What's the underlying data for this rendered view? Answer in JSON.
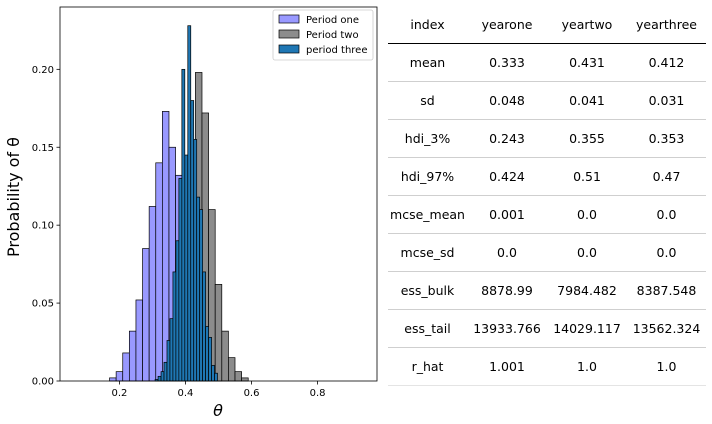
{
  "chart_data": {
    "type": "bar",
    "subtype": "histogram-overlay",
    "xlabel": "θ",
    "ylabel": "Probability of θ",
    "xlim": [
      0.02,
      0.98
    ],
    "ylim": [
      0,
      0.24
    ],
    "x_ticks": [
      0.2,
      0.4,
      0.6,
      0.8
    ],
    "y_ticks": [
      0.0,
      0.05,
      0.1,
      0.15,
      0.2
    ],
    "grid": false,
    "legend": "top-right",
    "series": [
      {
        "name": "Period one",
        "color": "#9999ff",
        "bins": [
          [
            0.17,
            0.19,
            0.002
          ],
          [
            0.19,
            0.21,
            0.006
          ],
          [
            0.21,
            0.23,
            0.018
          ],
          [
            0.23,
            0.25,
            0.032
          ],
          [
            0.25,
            0.27,
            0.052
          ],
          [
            0.27,
            0.29,
            0.085
          ],
          [
            0.29,
            0.31,
            0.112
          ],
          [
            0.31,
            0.33,
            0.14
          ],
          [
            0.33,
            0.35,
            0.173
          ],
          [
            0.35,
            0.37,
            0.15
          ],
          [
            0.37,
            0.39,
            0.132
          ],
          [
            0.39,
            0.41,
            0.095
          ],
          [
            0.41,
            0.43,
            0.055
          ],
          [
            0.43,
            0.45,
            0.032
          ],
          [
            0.45,
            0.47,
            0.013
          ],
          [
            0.47,
            0.49,
            0.005
          ],
          [
            0.49,
            0.51,
            0.002
          ]
        ]
      },
      {
        "name": "Period two",
        "color": "#8c8c8c",
        "bins": [
          [
            0.33,
            0.35,
            0.003
          ],
          [
            0.35,
            0.37,
            0.01
          ],
          [
            0.37,
            0.39,
            0.03
          ],
          [
            0.39,
            0.41,
            0.078
          ],
          [
            0.41,
            0.43,
            0.148
          ],
          [
            0.43,
            0.45,
            0.198
          ],
          [
            0.45,
            0.47,
            0.172
          ],
          [
            0.47,
            0.49,
            0.11
          ],
          [
            0.49,
            0.51,
            0.062
          ],
          [
            0.51,
            0.53,
            0.032
          ],
          [
            0.53,
            0.55,
            0.015
          ],
          [
            0.55,
            0.57,
            0.006
          ],
          [
            0.57,
            0.59,
            0.002
          ]
        ]
      },
      {
        "name": "period three",
        "color": "#1f77b4",
        "bins": [
          [
            0.308,
            0.317,
            0.001
          ],
          [
            0.317,
            0.326,
            0.003
          ],
          [
            0.326,
            0.335,
            0.006
          ],
          [
            0.335,
            0.344,
            0.012
          ],
          [
            0.344,
            0.353,
            0.026
          ],
          [
            0.353,
            0.362,
            0.04
          ],
          [
            0.362,
            0.371,
            0.07
          ],
          [
            0.371,
            0.38,
            0.09
          ],
          [
            0.38,
            0.389,
            0.13
          ],
          [
            0.389,
            0.398,
            0.2
          ],
          [
            0.398,
            0.407,
            0.145
          ],
          [
            0.407,
            0.416,
            0.228
          ],
          [
            0.416,
            0.425,
            0.18
          ],
          [
            0.425,
            0.434,
            0.155
          ],
          [
            0.434,
            0.443,
            0.118
          ],
          [
            0.443,
            0.452,
            0.11
          ],
          [
            0.452,
            0.461,
            0.07
          ],
          [
            0.461,
            0.47,
            0.035
          ],
          [
            0.47,
            0.479,
            0.028
          ],
          [
            0.479,
            0.488,
            0.01
          ],
          [
            0.488,
            0.497,
            0.005
          ]
        ]
      }
    ]
  },
  "table": {
    "headers": [
      "index",
      "yearone",
      "yeartwo",
      "yearthree"
    ],
    "rows": [
      [
        "mean",
        "0.333",
        "0.431",
        "0.412"
      ],
      [
        "sd",
        "0.048",
        "0.041",
        "0.031"
      ],
      [
        "hdi_3%",
        "0.243",
        "0.355",
        "0.353"
      ],
      [
        "hdi_97%",
        "0.424",
        "0.51",
        "0.47"
      ],
      [
        "mcse_mean",
        "0.001",
        "0.0",
        "0.0"
      ],
      [
        "mcse_sd",
        "0.0",
        "0.0",
        "0.0"
      ],
      [
        "ess_bulk",
        "8878.99",
        "7984.482",
        "8387.548"
      ],
      [
        "ess_tail",
        "13933.766",
        "14029.117",
        "13562.324"
      ],
      [
        "r_hat",
        "1.001",
        "1.0",
        "1.0"
      ]
    ]
  }
}
